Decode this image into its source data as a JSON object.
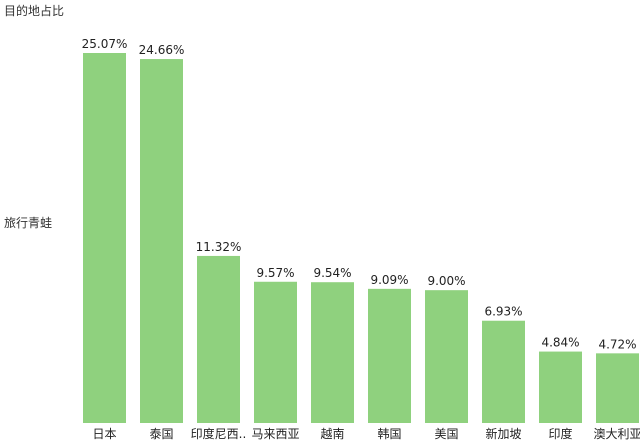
{
  "chart_data": {
    "type": "bar",
    "title": "目的地占比",
    "row_label": "旅行青蛙",
    "categories": [
      "日本",
      "泰国",
      "印度尼西..",
      "马来西亚",
      "越南",
      "韩国",
      "美国",
      "新加坡",
      "印度",
      "澳大利亚"
    ],
    "values": [
      25.07,
      24.66,
      11.32,
      9.57,
      9.54,
      9.09,
      9.0,
      6.93,
      4.84,
      4.72
    ],
    "value_labels": [
      "25.07%",
      "24.66%",
      "11.32%",
      "9.57%",
      "9.54%",
      "9.09%",
      "9.00%",
      "6.93%",
      "4.84%",
      "4.72%"
    ],
    "ylim": [
      0,
      25.07
    ],
    "bar_color": "#8fd17e",
    "grid": false,
    "legend": "none"
  }
}
